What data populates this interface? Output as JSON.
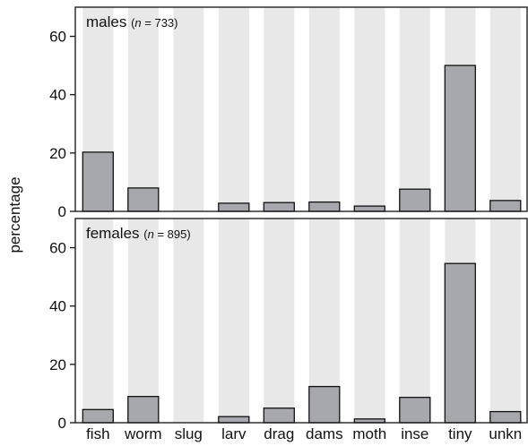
{
  "chart_data": {
    "type": "bar",
    "ylabel": "percentage",
    "ylim": [
      0,
      70
    ],
    "yticks": [
      0,
      20,
      40,
      60
    ],
    "categories": [
      "fish",
      "worm",
      "slug",
      "larv",
      "drag",
      "dams",
      "moth",
      "inse",
      "tiny",
      "unkn"
    ],
    "grid": false,
    "panels": [
      {
        "title": "males",
        "n_label": "n",
        "n_text": " = 733",
        "values": [
          20.3,
          8.0,
          0,
          2.8,
          3.0,
          3.2,
          1.8,
          7.6,
          50.0,
          3.7
        ]
      },
      {
        "title": "females",
        "n_label": "n",
        "n_text": " = 895",
        "values": [
          4.5,
          9.0,
          0,
          2.1,
          5.0,
          12.4,
          1.3,
          8.7,
          54.6,
          3.8
        ]
      }
    ]
  },
  "colors": {
    "bar": "#a7a8ae",
    "bar_stroke": "#111111",
    "band": "#e8e8e8",
    "axis": "#111111"
  }
}
